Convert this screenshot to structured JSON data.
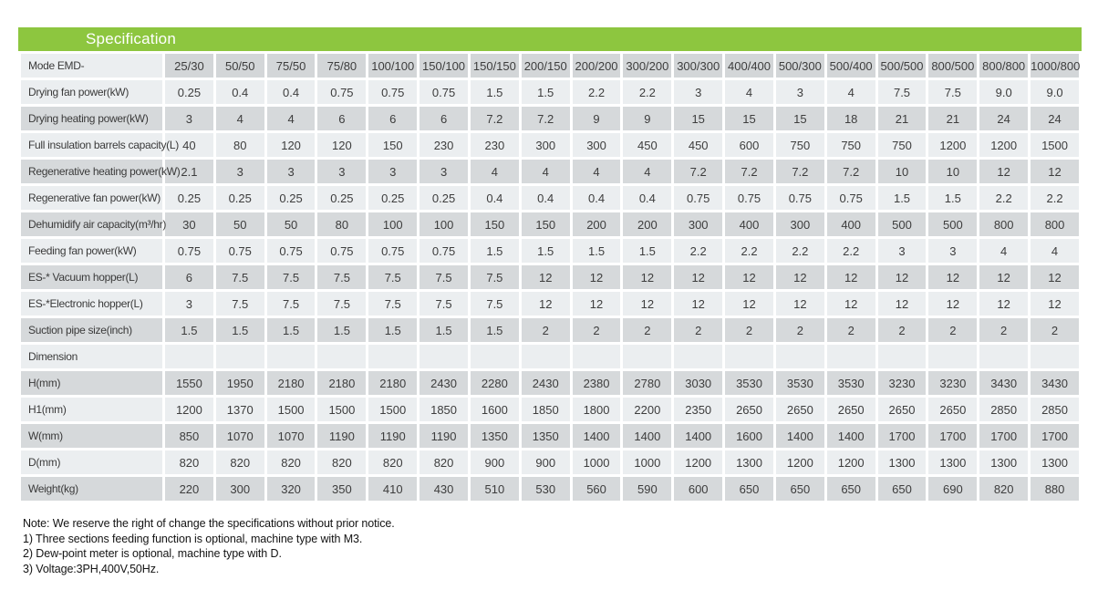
{
  "table": {
    "title": "Specification",
    "model_row_label": "Mode EMD-",
    "columns": [
      "25/30",
      "50/50",
      "75/50",
      "75/80",
      "100/100",
      "150/100",
      "150/150",
      "200/150",
      "200/200",
      "300/200",
      "300/300",
      "400/400",
      "500/300",
      "500/400",
      "500/500",
      "800/500",
      "800/800",
      "1000/800"
    ],
    "rows": [
      {
        "label": "Drying fan power(kW)",
        "values": [
          "0.25",
          "0.4",
          "0.4",
          "0.75",
          "0.75",
          "0.75",
          "1.5",
          "1.5",
          "2.2",
          "2.2",
          "3",
          "4",
          "3",
          "4",
          "7.5",
          "7.5",
          "9.0",
          "9.0"
        ]
      },
      {
        "label": "Drying heating power(kW)",
        "values": [
          "3",
          "4",
          "4",
          "6",
          "6",
          "6",
          "7.2",
          "7.2",
          "9",
          "9",
          "15",
          "15",
          "15",
          "18",
          "21",
          "21",
          "24",
          "24"
        ]
      },
      {
        "label": "Full insulation barrels capacity(L)",
        "values": [
          "40",
          "80",
          "120",
          "120",
          "150",
          "230",
          "230",
          "300",
          "300",
          "450",
          "450",
          "600",
          "750",
          "750",
          "750",
          "1200",
          "1200",
          "1500"
        ]
      },
      {
        "label": "Regenerative heating power(kW)",
        "values": [
          "2.1",
          "3",
          "3",
          "3",
          "3",
          "3",
          "4",
          "4",
          "4",
          "4",
          "7.2",
          "7.2",
          "7.2",
          "7.2",
          "10",
          "10",
          "12",
          "12"
        ]
      },
      {
        "label": "Regenerative fan power(kW)",
        "values": [
          "0.25",
          "0.25",
          "0.25",
          "0.25",
          "0.25",
          "0.25",
          "0.4",
          "0.4",
          "0.4",
          "0.4",
          "0.75",
          "0.75",
          "0.75",
          "0.75",
          "1.5",
          "1.5",
          "2.2",
          "2.2"
        ]
      },
      {
        "label": "Dehumidify air capacity(m³/hr)",
        "values": [
          "30",
          "50",
          "50",
          "80",
          "100",
          "100",
          "150",
          "150",
          "200",
          "200",
          "300",
          "400",
          "300",
          "400",
          "500",
          "500",
          "800",
          "800"
        ]
      },
      {
        "label": "Feeding fan power(kW)",
        "values": [
          "0.75",
          "0.75",
          "0.75",
          "0.75",
          "0.75",
          "0.75",
          "1.5",
          "1.5",
          "1.5",
          "1.5",
          "2.2",
          "2.2",
          "2.2",
          "2.2",
          "3",
          "3",
          "4",
          "4"
        ]
      },
      {
        "label": "ES-* Vacuum hopper(L)",
        "values": [
          "6",
          "7.5",
          "7.5",
          "7.5",
          "7.5",
          "7.5",
          "7.5",
          "12",
          "12",
          "12",
          "12",
          "12",
          "12",
          "12",
          "12",
          "12",
          "12",
          "12"
        ]
      },
      {
        "label": "ES-*Electronic hopper(L)",
        "values": [
          "3",
          "7.5",
          "7.5",
          "7.5",
          "7.5",
          "7.5",
          "7.5",
          "12",
          "12",
          "12",
          "12",
          "12",
          "12",
          "12",
          "12",
          "12",
          "12",
          "12"
        ]
      },
      {
        "label": "Suction pipe size(inch)",
        "values": [
          "1.5",
          "1.5",
          "1.5",
          "1.5",
          "1.5",
          "1.5",
          "1.5",
          "2",
          "2",
          "2",
          "2",
          "2",
          "2",
          "2",
          "2",
          "2",
          "2",
          "2"
        ]
      },
      {
        "label": "Dimension",
        "values": [
          "",
          "",
          "",
          "",
          "",
          "",
          "",
          "",
          "",
          "",
          "",
          "",
          "",
          "",
          "",
          "",
          "",
          ""
        ]
      },
      {
        "label": "H(mm)",
        "values": [
          "1550",
          "1950",
          "2180",
          "2180",
          "2180",
          "2430",
          "2280",
          "2430",
          "2380",
          "2780",
          "3030",
          "3530",
          "3530",
          "3530",
          "3230",
          "3230",
          "3430",
          "3430"
        ]
      },
      {
        "label": "H1(mm)",
        "values": [
          "1200",
          "1370",
          "1500",
          "1500",
          "1500",
          "1850",
          "1600",
          "1850",
          "1800",
          "2200",
          "2350",
          "2650",
          "2650",
          "2650",
          "2650",
          "2650",
          "2850",
          "2850"
        ]
      },
      {
        "label": "W(mm)",
        "values": [
          "850",
          "1070",
          "1070",
          "1190",
          "1190",
          "1190",
          "1350",
          "1350",
          "1400",
          "1400",
          "1400",
          "1600",
          "1400",
          "1400",
          "1700",
          "1700",
          "1700",
          "1700"
        ]
      },
      {
        "label": "D(mm)",
        "values": [
          "820",
          "820",
          "820",
          "820",
          "820",
          "820",
          "900",
          "900",
          "1000",
          "1000",
          "1200",
          "1300",
          "1200",
          "1200",
          "1300",
          "1300",
          "1300",
          "1300"
        ]
      },
      {
        "label": "Weight(kg)",
        "values": [
          "220",
          "300",
          "320",
          "350",
          "410",
          "430",
          "510",
          "530",
          "560",
          "590",
          "600",
          "650",
          "650",
          "650",
          "650",
          "690",
          "820",
          "880"
        ]
      }
    ]
  },
  "notes": {
    "note": "Note: We reserve the right of change the specifications without prior notice.",
    "items": [
      "1) Three sections feeding function is optional, machine type with M3.",
      "2) Dew-point meter is optional, machine type with D.",
      "3) Voltage:3PH,400V,50Hz."
    ]
  },
  "colors": {
    "title_bar_green": "#8DC63F",
    "row_light": "#EBEEF0",
    "row_dark": "#D6D9DB",
    "text": "#3d3d3d"
  }
}
